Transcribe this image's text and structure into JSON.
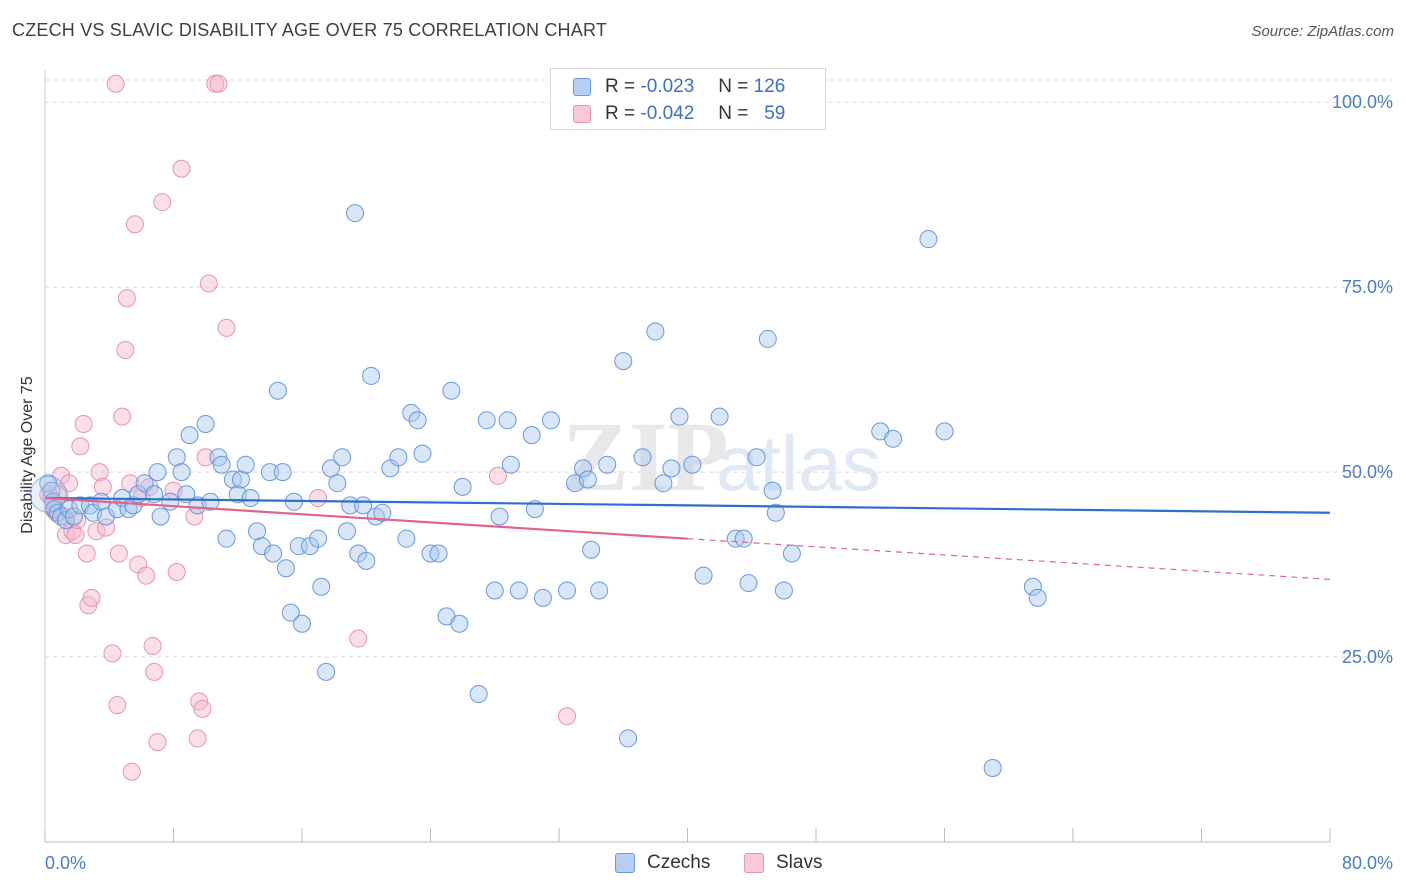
{
  "header": {
    "title": "CZECH VS SLAVIC DISABILITY AGE OVER 75 CORRELATION CHART",
    "source": "Source: ZipAtlas.com"
  },
  "watermark": {
    "text_zip": "ZIP",
    "text_atlas": "atlas"
  },
  "legend": {
    "r_label": "R =",
    "n_label": "N =",
    "czechs": {
      "r": "-0.023",
      "n": "126"
    },
    "slavs": {
      "r": "-0.042",
      "n": "59"
    }
  },
  "bottom_legend": {
    "czechs": "Czechs",
    "slavs": "Slavs"
  },
  "colors": {
    "czechs_fill": "#a9c7f0",
    "czechs_stroke": "#5a8fd8",
    "czechs_line": "#2f6fcc",
    "slavs_fill": "#f7b9cc",
    "slavs_stroke": "#e58aa6",
    "slavs_line": "#e0648e",
    "tick_text": "#4a7cc7",
    "grid": "#d9d9d9"
  },
  "chart_data": {
    "type": "scatter",
    "title": "CZECH VS SLAVIC DISABILITY AGE OVER 75 CORRELATION CHART",
    "xlabel": "",
    "ylabel": "Disability Age Over 75",
    "xlim": [
      0,
      80
    ],
    "ylim": [
      0,
      103
    ],
    "x_tick_labels": [
      "0.0%",
      "80.0%"
    ],
    "y_ticks": [
      25,
      50,
      75,
      100
    ],
    "y_tick_labels": [
      "25.0%",
      "50.0%",
      "75.0%",
      "100.0%"
    ],
    "grid": true,
    "legend_position": "top-center",
    "series": [
      {
        "name": "Czechs",
        "r": -0.023,
        "n": 126,
        "trend": {
          "x0": 0,
          "y0": 46.5,
          "x1": 80,
          "y1": 44.5,
          "dashed_from": null
        },
        "points": [
          [
            0.2,
            48.5
          ],
          [
            0.4,
            47.5
          ],
          [
            0.5,
            46
          ],
          [
            0.6,
            45
          ],
          [
            0.8,
            44.5
          ],
          [
            1.0,
            44
          ],
          [
            1.3,
            43.5
          ],
          [
            1.5,
            45
          ],
          [
            1.8,
            44
          ],
          [
            2.2,
            45.5
          ],
          [
            2.8,
            45.5
          ],
          [
            3.0,
            44.5
          ],
          [
            3.5,
            46
          ],
          [
            3.8,
            44
          ],
          [
            4.5,
            45
          ],
          [
            4.8,
            46.5
          ],
          [
            5.2,
            45
          ],
          [
            5.5,
            45.5
          ],
          [
            5.8,
            47
          ],
          [
            6.2,
            48.5
          ],
          [
            6.8,
            47
          ],
          [
            7.0,
            50
          ],
          [
            7.2,
            44
          ],
          [
            7.8,
            46
          ],
          [
            8.2,
            52
          ],
          [
            8.5,
            50
          ],
          [
            8.8,
            47
          ],
          [
            9.0,
            55
          ],
          [
            9.5,
            45.5
          ],
          [
            10.0,
            56.5
          ],
          [
            10.3,
            46
          ],
          [
            10.8,
            52
          ],
          [
            11.0,
            51
          ],
          [
            11.3,
            41
          ],
          [
            11.7,
            49
          ],
          [
            12.0,
            47
          ],
          [
            12.2,
            49
          ],
          [
            12.5,
            51
          ],
          [
            12.8,
            46.5
          ],
          [
            13.2,
            42
          ],
          [
            13.5,
            40
          ],
          [
            14.0,
            50
          ],
          [
            14.2,
            39
          ],
          [
            14.5,
            61
          ],
          [
            14.8,
            50
          ],
          [
            15.0,
            37
          ],
          [
            15.3,
            31
          ],
          [
            15.5,
            46
          ],
          [
            15.8,
            40
          ],
          [
            16.0,
            29.5
          ],
          [
            16.5,
            40
          ],
          [
            17.0,
            41
          ],
          [
            17.2,
            34.5
          ],
          [
            17.5,
            23
          ],
          [
            17.8,
            50.5
          ],
          [
            18.2,
            48.5
          ],
          [
            18.5,
            52
          ],
          [
            18.8,
            42
          ],
          [
            19.0,
            45.5
          ],
          [
            19.3,
            85
          ],
          [
            19.5,
            39
          ],
          [
            19.8,
            45.5
          ],
          [
            20.0,
            38
          ],
          [
            20.3,
            63
          ],
          [
            20.6,
            44
          ],
          [
            21.0,
            44.5
          ],
          [
            21.5,
            50.5
          ],
          [
            22.0,
            52
          ],
          [
            22.5,
            41
          ],
          [
            22.8,
            58
          ],
          [
            23.2,
            57
          ],
          [
            23.5,
            52.5
          ],
          [
            24.0,
            39
          ],
          [
            24.5,
            39
          ],
          [
            25.0,
            30.5
          ],
          [
            25.3,
            61
          ],
          [
            25.8,
            29.5
          ],
          [
            26.0,
            48
          ],
          [
            27.0,
            20
          ],
          [
            27.5,
            57
          ],
          [
            28.0,
            34
          ],
          [
            28.3,
            44
          ],
          [
            28.8,
            57
          ],
          [
            29.0,
            51
          ],
          [
            29.5,
            34
          ],
          [
            30.3,
            55
          ],
          [
            30.5,
            45
          ],
          [
            31.0,
            33
          ],
          [
            31.5,
            57
          ],
          [
            32.5,
            34
          ],
          [
            33.0,
            48.5
          ],
          [
            33.5,
            50.5
          ],
          [
            33.8,
            49
          ],
          [
            34.0,
            39.5
          ],
          [
            34.5,
            34
          ],
          [
            35.0,
            51
          ],
          [
            36.0,
            65
          ],
          [
            36.3,
            14
          ],
          [
            37.2,
            52
          ],
          [
            38.0,
            69
          ],
          [
            38.5,
            48.5
          ],
          [
            39.0,
            50.5
          ],
          [
            39.5,
            57.5
          ],
          [
            40.3,
            51
          ],
          [
            41.0,
            36
          ],
          [
            42.0,
            57.5
          ],
          [
            43.0,
            41
          ],
          [
            43.5,
            41
          ],
          [
            43.8,
            35
          ],
          [
            44.3,
            52
          ],
          [
            45.0,
            68
          ],
          [
            45.3,
            47.5
          ],
          [
            45.5,
            44.5
          ],
          [
            46.0,
            34
          ],
          [
            46.5,
            39
          ],
          [
            52.0,
            55.5
          ],
          [
            52.8,
            54.5
          ],
          [
            55.0,
            81.5
          ],
          [
            56.0,
            55.5
          ],
          [
            59.0,
            10
          ],
          [
            61.5,
            34.5
          ],
          [
            61.8,
            33
          ]
        ]
      },
      {
        "name": "Slavs",
        "r": -0.042,
        "n": 59,
        "trend": {
          "x0": 0,
          "y0": 46.5,
          "x1": 80,
          "y1": 35.5,
          "dashed_from": 40
        },
        "points": [
          [
            0.2,
            47
          ],
          [
            0.4,
            46.5
          ],
          [
            0.5,
            45
          ],
          [
            0.7,
            44.5
          ],
          [
            0.9,
            47
          ],
          [
            1.0,
            49.5
          ],
          [
            1.2,
            44
          ],
          [
            1.3,
            41.5
          ],
          [
            1.5,
            48.5
          ],
          [
            1.7,
            42
          ],
          [
            1.9,
            41.5
          ],
          [
            2.0,
            43.5
          ],
          [
            2.2,
            53.5
          ],
          [
            2.4,
            56.5
          ],
          [
            2.6,
            39
          ],
          [
            2.7,
            32
          ],
          [
            2.9,
            33
          ],
          [
            3.2,
            42
          ],
          [
            3.4,
            50
          ],
          [
            3.6,
            48
          ],
          [
            3.8,
            42.5
          ],
          [
            4.2,
            25.5
          ],
          [
            4.5,
            18.5
          ],
          [
            4.6,
            39
          ],
          [
            4.8,
            57.5
          ],
          [
            5.0,
            66.5
          ],
          [
            5.1,
            73.5
          ],
          [
            5.3,
            48.5
          ],
          [
            5.4,
            9.5
          ],
          [
            5.6,
            83.5
          ],
          [
            5.8,
            37.5
          ],
          [
            6.0,
            46.5
          ],
          [
            6.3,
            36
          ],
          [
            6.5,
            48
          ],
          [
            6.7,
            26.5
          ],
          [
            6.8,
            23
          ],
          [
            7.0,
            13.5
          ],
          [
            7.3,
            86.5
          ],
          [
            8.0,
            47.5
          ],
          [
            8.2,
            36.5
          ],
          [
            8.5,
            91
          ],
          [
            9.3,
            44
          ],
          [
            9.5,
            14
          ],
          [
            9.6,
            19
          ],
          [
            9.8,
            18
          ],
          [
            10.0,
            52
          ],
          [
            10.2,
            75.5
          ],
          [
            10.6,
            102.5
          ],
          [
            10.8,
            102.5
          ],
          [
            11.3,
            69.5
          ],
          [
            4.4,
            102.5
          ],
          [
            17.0,
            46.5
          ],
          [
            19.5,
            27.5
          ],
          [
            28.2,
            49.5
          ],
          [
            32.5,
            17
          ]
        ]
      }
    ]
  }
}
